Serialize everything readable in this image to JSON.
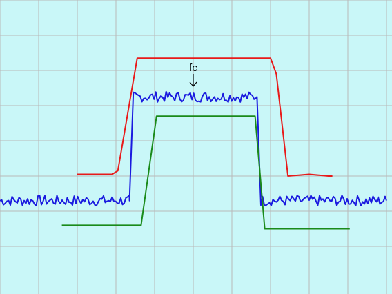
{
  "colors": {
    "background": "#c9f7f8",
    "grid": "#b9b9b9",
    "upper_mask": "#e81a1a",
    "signal": "#1a1adf",
    "lower_mask": "#1a8a1a"
  },
  "chart_data": {
    "type": "line",
    "title": "",
    "xlabel": "",
    "ylabel": "",
    "grid": true,
    "legend": "none",
    "xlim": [
      0,
      10
    ],
    "ylim": [
      0,
      8
    ],
    "annotation": {
      "text": "fc",
      "x": 5.0,
      "arrow": "down",
      "arrow_y": 5.55
    },
    "series": [
      {
        "key": "upper_mask",
        "color": "#e81a1a",
        "points": [
          [
            2.0,
            3.05
          ],
          [
            2.9,
            3.05
          ],
          [
            3.05,
            3.15
          ],
          [
            3.55,
            6.35
          ],
          [
            7.0,
            6.35
          ],
          [
            7.15,
            5.9
          ],
          [
            7.45,
            3.0
          ],
          [
            8.0,
            3.05
          ],
          [
            8.5,
            3.0
          ],
          [
            8.6,
            3.0
          ]
        ]
      },
      {
        "key": "signal",
        "color": "#1a1adf",
        "noise_band": 0.15,
        "points": [
          [
            0.0,
            2.3
          ],
          [
            3.35,
            2.3
          ],
          [
            3.45,
            5.25
          ],
          [
            6.65,
            5.25
          ],
          [
            6.75,
            2.3
          ],
          [
            10.0,
            2.3
          ]
        ]
      },
      {
        "key": "lower_mask",
        "color": "#1a8a1a",
        "points": [
          [
            1.6,
            1.6
          ],
          [
            3.65,
            1.6
          ],
          [
            4.05,
            4.7
          ],
          [
            6.6,
            4.7
          ],
          [
            6.85,
            1.5
          ],
          [
            9.05,
            1.5
          ]
        ]
      }
    ]
  }
}
